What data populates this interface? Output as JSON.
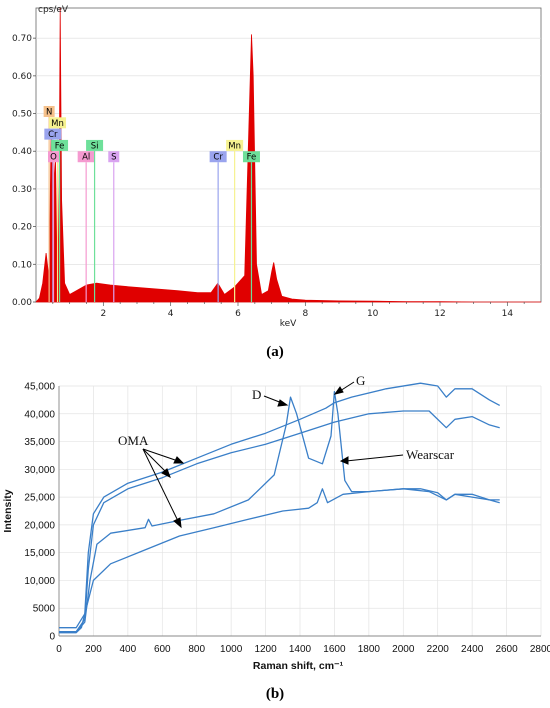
{
  "chart_data": [
    {
      "panel": "a",
      "type": "area",
      "caption": "(a)",
      "ylabel": "cps/eV",
      "xlabel": "keV",
      "xlim": [
        0,
        15
      ],
      "ylim": [
        0,
        0.78
      ],
      "x_ticks": [
        2,
        4,
        6,
        8,
        10,
        12,
        14
      ],
      "y_ticks": [
        "0.00",
        "0.10",
        "0.20",
        "0.30",
        "0.40",
        "0.50",
        "0.60",
        "0.70"
      ],
      "spectrum_color": "#e00000",
      "spectrum": {
        "x": [
          0.0,
          0.1,
          0.2,
          0.3,
          0.39,
          0.45,
          0.52,
          0.58,
          0.64,
          0.69,
          0.72,
          0.76,
          0.85,
          1.0,
          1.2,
          1.5,
          1.8,
          2.2,
          2.8,
          3.5,
          4.2,
          4.8,
          5.2,
          5.4,
          5.6,
          5.9,
          6.2,
          6.35,
          6.4,
          6.45,
          6.55,
          6.7,
          6.9,
          7.0,
          7.06,
          7.15,
          7.3,
          7.6,
          8.0,
          9.0,
          10.0,
          11.0,
          12.0,
          13.0,
          14.0,
          15.0
        ],
        "y": [
          0.0,
          0.01,
          0.05,
          0.13,
          0.06,
          0.44,
          0.31,
          0.38,
          0.0,
          0.31,
          0.78,
          0.27,
          0.05,
          0.02,
          0.03,
          0.045,
          0.05,
          0.045,
          0.04,
          0.035,
          0.03,
          0.025,
          0.025,
          0.05,
          0.02,
          0.04,
          0.07,
          0.55,
          0.71,
          0.6,
          0.1,
          0.02,
          0.03,
          0.08,
          0.105,
          0.06,
          0.015,
          0.008,
          0.005,
          0.003,
          0.002,
          0.001,
          0.001,
          0.0,
          0.0,
          0.0
        ]
      },
      "element_markers": [
        {
          "label": "N",
          "x": 0.39,
          "y_top": 0.52,
          "color": "#f5c08a"
        },
        {
          "label": "Mn",
          "x": 0.64,
          "y_top": 0.49,
          "color": "#f6f290"
        },
        {
          "label": "Cr",
          "x": 0.5,
          "y_top": 0.46,
          "color": "#9aa4ee"
        },
        {
          "label": "Fe",
          "x": 0.7,
          "y_top": 0.43,
          "color": "#6ee09a"
        },
        {
          "label": "O",
          "x": 0.52,
          "y_top": 0.4,
          "color": "#f59ad0"
        },
        {
          "label": "Al",
          "x": 1.49,
          "y_top": 0.4,
          "color": "#f59ad0"
        },
        {
          "label": "Si",
          "x": 1.74,
          "y_top": 0.43,
          "color": "#6ee09a"
        },
        {
          "label": "S",
          "x": 2.31,
          "y_top": 0.4,
          "color": "#d9a3f0"
        },
        {
          "label": "Cr",
          "x": 5.41,
          "y_top": 0.4,
          "color": "#9aa4ee"
        },
        {
          "label": "Mn",
          "x": 5.9,
          "y_top": 0.43,
          "color": "#f6f290"
        },
        {
          "label": "Fe",
          "x": 6.4,
          "y_top": 0.4,
          "color": "#6ee09a"
        }
      ]
    },
    {
      "panel": "b",
      "type": "line",
      "caption": "(b)",
      "xlabel": "Raman shift, cm⁻¹",
      "ylabel": "Intensity",
      "xlim": [
        0,
        2800
      ],
      "ylim": [
        0,
        45000
      ],
      "x_ticks": [
        0,
        200,
        400,
        600,
        800,
        1000,
        1200,
        1400,
        1600,
        1800,
        2000,
        2200,
        2400,
        2600,
        2800
      ],
      "y_ticks": [
        0,
        5000,
        10000,
        15000,
        20000,
        25000,
        30000,
        35000,
        40000,
        45000
      ],
      "y_tick_labels": [
        "0",
        "5000",
        "10,000",
        "15,000",
        "20,000",
        "25,000",
        "30,000",
        "35,000",
        "40,000",
        "45,000"
      ],
      "line_color": "#3a7fc8",
      "series": [
        {
          "x": [
            0,
            100,
            150,
            170,
            200,
            260,
            400,
            600,
            800,
            1000,
            1200,
            1400,
            1550,
            1600,
            1700,
            1900,
            2100,
            2200,
            2250,
            2300,
            2400,
            2500,
            2560
          ],
          "y": [
            1500,
            1500,
            4000,
            15000,
            22000,
            25000,
            27500,
            29500,
            32000,
            34500,
            36500,
            39000,
            41000,
            42000,
            43000,
            44500,
            45500,
            45000,
            43000,
            44500,
            44500,
            42500,
            41500
          ]
        },
        {
          "x": [
            0,
            100,
            150,
            170,
            200,
            260,
            400,
            600,
            800,
            1000,
            1200,
            1400,
            1600,
            1800,
            2000,
            2150,
            2250,
            2300,
            2400,
            2500,
            2560
          ],
          "y": [
            800,
            800,
            3000,
            12000,
            20000,
            24000,
            26500,
            28500,
            31000,
            33000,
            34500,
            36500,
            38500,
            40000,
            40500,
            40500,
            37500,
            39000,
            39500,
            38000,
            37500
          ]
        },
        {
          "x": [
            0,
            100,
            150,
            180,
            220,
            300,
            500,
            520,
            540,
            700,
            900,
            1100,
            1250,
            1320,
            1345,
            1380,
            1450,
            1530,
            1580,
            1600,
            1620,
            1660,
            1700,
            1800,
            2000,
            2100,
            2200,
            2250,
            2300,
            2400,
            2500,
            2560
          ],
          "y": [
            700,
            700,
            2500,
            10000,
            16500,
            18500,
            19500,
            21000,
            19800,
            20800,
            22000,
            24500,
            29000,
            38000,
            43000,
            40000,
            32000,
            31000,
            36000,
            44000,
            40000,
            28000,
            26000,
            26000,
            26500,
            26500,
            25800,
            24500,
            25500,
            25500,
            24500,
            24000
          ]
        },
        {
          "x": [
            0,
            100,
            130,
            150,
            200,
            300,
            500,
            700,
            900,
            1100,
            1300,
            1450,
            1500,
            1530,
            1560,
            1650,
            1800,
            2000,
            2150,
            2250,
            2300,
            2400,
            2500,
            2560
          ],
          "y": [
            600,
            600,
            1500,
            4000,
            10000,
            13000,
            15500,
            18000,
            19500,
            21000,
            22500,
            23000,
            24000,
            26500,
            24000,
            25500,
            26000,
            26500,
            26000,
            24500,
            25500,
            25000,
            24500,
            24500
          ]
        }
      ],
      "annotations": [
        {
          "text": "OMA"
        },
        {
          "text": "D"
        },
        {
          "text": "G"
        },
        {
          "text": "Wearscar"
        }
      ]
    }
  ]
}
